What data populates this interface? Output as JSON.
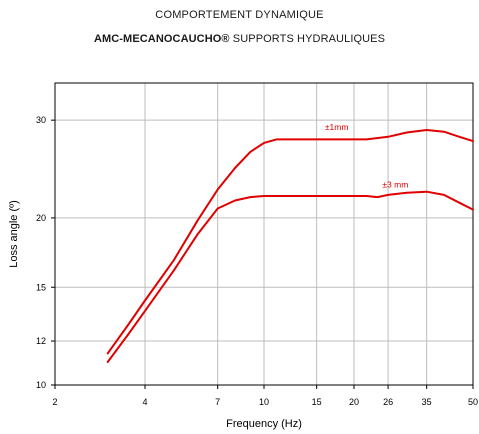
{
  "header": {
    "line1": "COMPORTEMENT DYNAMIQUE",
    "brand": "AMC-MECANOCAUCHO®",
    "line2_rest": " SUPPORTS HYDRAULIQUES"
  },
  "chart_data": {
    "type": "line",
    "title": "",
    "xlabel": "Frequency (Hz)",
    "ylabel": "Loss angle (º)",
    "x_scale": "log",
    "y_scale": "log",
    "xlim": [
      2,
      50
    ],
    "ylim": [
      10,
      35
    ],
    "x_ticks": [
      2,
      4,
      7,
      10,
      15,
      20,
      26,
      35,
      50
    ],
    "y_ticks": [
      10,
      12,
      15,
      20,
      30
    ],
    "grid": true,
    "line_color": "#e00000",
    "series": [
      {
        "name": "±1mm",
        "x": [
          3.0,
          3.5,
          4.0,
          5.0,
          6.0,
          7.0,
          8.0,
          9.0,
          10.0,
          11.0,
          12.0,
          15.0,
          20.0,
          22.0,
          26.0,
          30.0,
          35.0,
          40.0,
          45.0,
          50.0
        ],
        "y": [
          11.4,
          12.8,
          14.2,
          16.8,
          19.8,
          22.5,
          24.6,
          26.3,
          27.3,
          27.7,
          27.7,
          27.7,
          27.7,
          27.7,
          28.0,
          28.5,
          28.8,
          28.6,
          28.0,
          27.5
        ]
      },
      {
        "name": "±3 mm",
        "x": [
          3.0,
          3.5,
          4.0,
          5.0,
          6.0,
          7.0,
          8.0,
          9.0,
          10.0,
          11.0,
          15.0,
          20.0,
          22.0,
          24.0,
          26.0,
          30.0,
          35.0,
          40.0,
          45.0,
          50.0
        ],
        "y": [
          11.0,
          12.3,
          13.6,
          16.1,
          18.7,
          20.8,
          21.5,
          21.8,
          21.9,
          21.9,
          21.9,
          21.9,
          21.9,
          21.8,
          22.0,
          22.2,
          22.3,
          22.0,
          21.3,
          20.7
        ]
      }
    ],
    "annotations": [
      {
        "text": "±1mm",
        "x": 17.5,
        "y": 28.8
      },
      {
        "text": "±3 mm",
        "x": 27.5,
        "y": 22.7
      }
    ]
  }
}
